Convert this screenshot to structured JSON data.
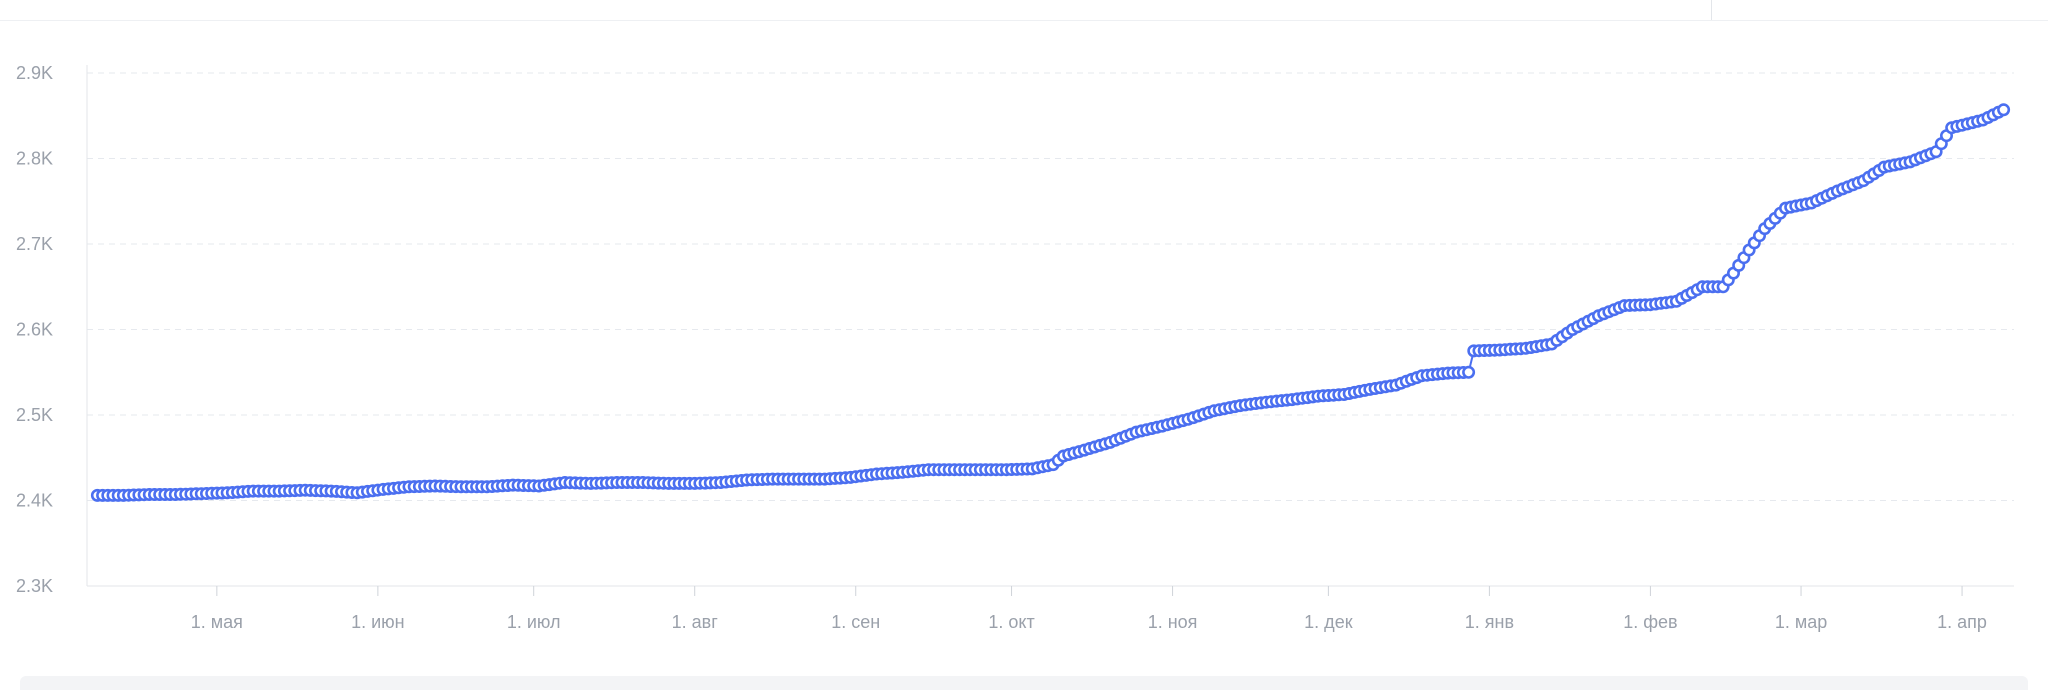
{
  "chart_data": {
    "type": "line",
    "title": "",
    "xlabel": "",
    "ylabel": "",
    "ylim": [
      2300,
      2900
    ],
    "y_ticks": [
      2300,
      2400,
      2500,
      2600,
      2700,
      2800,
      2900
    ],
    "y_tick_labels": [
      "2.3K",
      "2.4K",
      "2.5K",
      "2.6K",
      "2.7K",
      "2.8K",
      "2.9K"
    ],
    "x_tick_labels": [
      "1. мая",
      "1. июн",
      "1. июл",
      "1. авг",
      "1. сен",
      "1. окт",
      "1. ноя",
      "1. дек",
      "1. янв",
      "1. фев",
      "1. мар",
      "1. апр"
    ],
    "x_range": [
      "2023-04-06",
      "2024-04-11"
    ],
    "grid": "horizontal-dashed",
    "line_color": "#4b6ff0",
    "marker": "hollow-circle",
    "series": [
      {
        "points": [
          [
            "2023-04-08",
            2406
          ],
          [
            "2023-04-13",
            2406
          ],
          [
            "2023-04-18",
            2407
          ],
          [
            "2023-04-23",
            2407
          ],
          [
            "2023-04-28",
            2408
          ],
          [
            "2023-05-03",
            2409
          ],
          [
            "2023-05-08",
            2411
          ],
          [
            "2023-05-13",
            2411
          ],
          [
            "2023-05-18",
            2412
          ],
          [
            "2023-05-23",
            2411
          ],
          [
            "2023-05-28",
            2409
          ],
          [
            "2023-06-02",
            2413
          ],
          [
            "2023-06-07",
            2416
          ],
          [
            "2023-06-12",
            2417
          ],
          [
            "2023-06-17",
            2416
          ],
          [
            "2023-06-22",
            2416
          ],
          [
            "2023-06-27",
            2418
          ],
          [
            "2023-07-02",
            2417
          ],
          [
            "2023-07-07",
            2421
          ],
          [
            "2023-07-12",
            2420
          ],
          [
            "2023-07-17",
            2421
          ],
          [
            "2023-07-22",
            2421
          ],
          [
            "2023-07-27",
            2420
          ],
          [
            "2023-08-01",
            2420
          ],
          [
            "2023-08-06",
            2421
          ],
          [
            "2023-08-11",
            2424
          ],
          [
            "2023-08-16",
            2425
          ],
          [
            "2023-08-21",
            2425
          ],
          [
            "2023-08-26",
            2425
          ],
          [
            "2023-08-31",
            2427
          ],
          [
            "2023-09-05",
            2431
          ],
          [
            "2023-09-10",
            2433
          ],
          [
            "2023-09-15",
            2436
          ],
          [
            "2023-09-20",
            2436
          ],
          [
            "2023-09-25",
            2436
          ],
          [
            "2023-09-30",
            2436
          ],
          [
            "2023-10-05",
            2437
          ],
          [
            "2023-10-09",
            2442
          ],
          [
            "2023-10-11",
            2452
          ],
          [
            "2023-10-15",
            2459
          ],
          [
            "2023-10-20",
            2468
          ],
          [
            "2023-10-25",
            2480
          ],
          [
            "2023-10-30",
            2487
          ],
          [
            "2023-11-04",
            2495
          ],
          [
            "2023-11-09",
            2505
          ],
          [
            "2023-11-14",
            2511
          ],
          [
            "2023-11-19",
            2515
          ],
          [
            "2023-11-24",
            2518
          ],
          [
            "2023-11-29",
            2522
          ],
          [
            "2023-12-04",
            2524
          ],
          [
            "2023-12-09",
            2530
          ],
          [
            "2023-12-14",
            2535
          ],
          [
            "2023-12-19",
            2546
          ],
          [
            "2023-12-24",
            2549
          ],
          [
            "2023-12-28",
            2550
          ],
          [
            "2023-12-29",
            2575
          ],
          [
            "2024-01-03",
            2576
          ],
          [
            "2024-01-08",
            2578
          ],
          [
            "2024-01-13",
            2583
          ],
          [
            "2024-01-17",
            2600
          ],
          [
            "2024-01-22",
            2616
          ],
          [
            "2024-01-27",
            2628
          ],
          [
            "2024-02-01",
            2629
          ],
          [
            "2024-02-06",
            2633
          ],
          [
            "2024-02-11",
            2650
          ],
          [
            "2024-02-15",
            2650
          ],
          [
            "2024-02-17",
            2666
          ],
          [
            "2024-02-20",
            2693
          ],
          [
            "2024-02-23",
            2718
          ],
          [
            "2024-02-27",
            2742
          ],
          [
            "2024-03-03",
            2748
          ],
          [
            "2024-03-08",
            2762
          ],
          [
            "2024-03-13",
            2774
          ],
          [
            "2024-03-17",
            2790
          ],
          [
            "2024-03-22",
            2796
          ],
          [
            "2024-03-27",
            2808
          ],
          [
            "2024-03-30",
            2836
          ],
          [
            "2024-04-05",
            2845
          ],
          [
            "2024-04-09",
            2857
          ]
        ]
      }
    ]
  }
}
